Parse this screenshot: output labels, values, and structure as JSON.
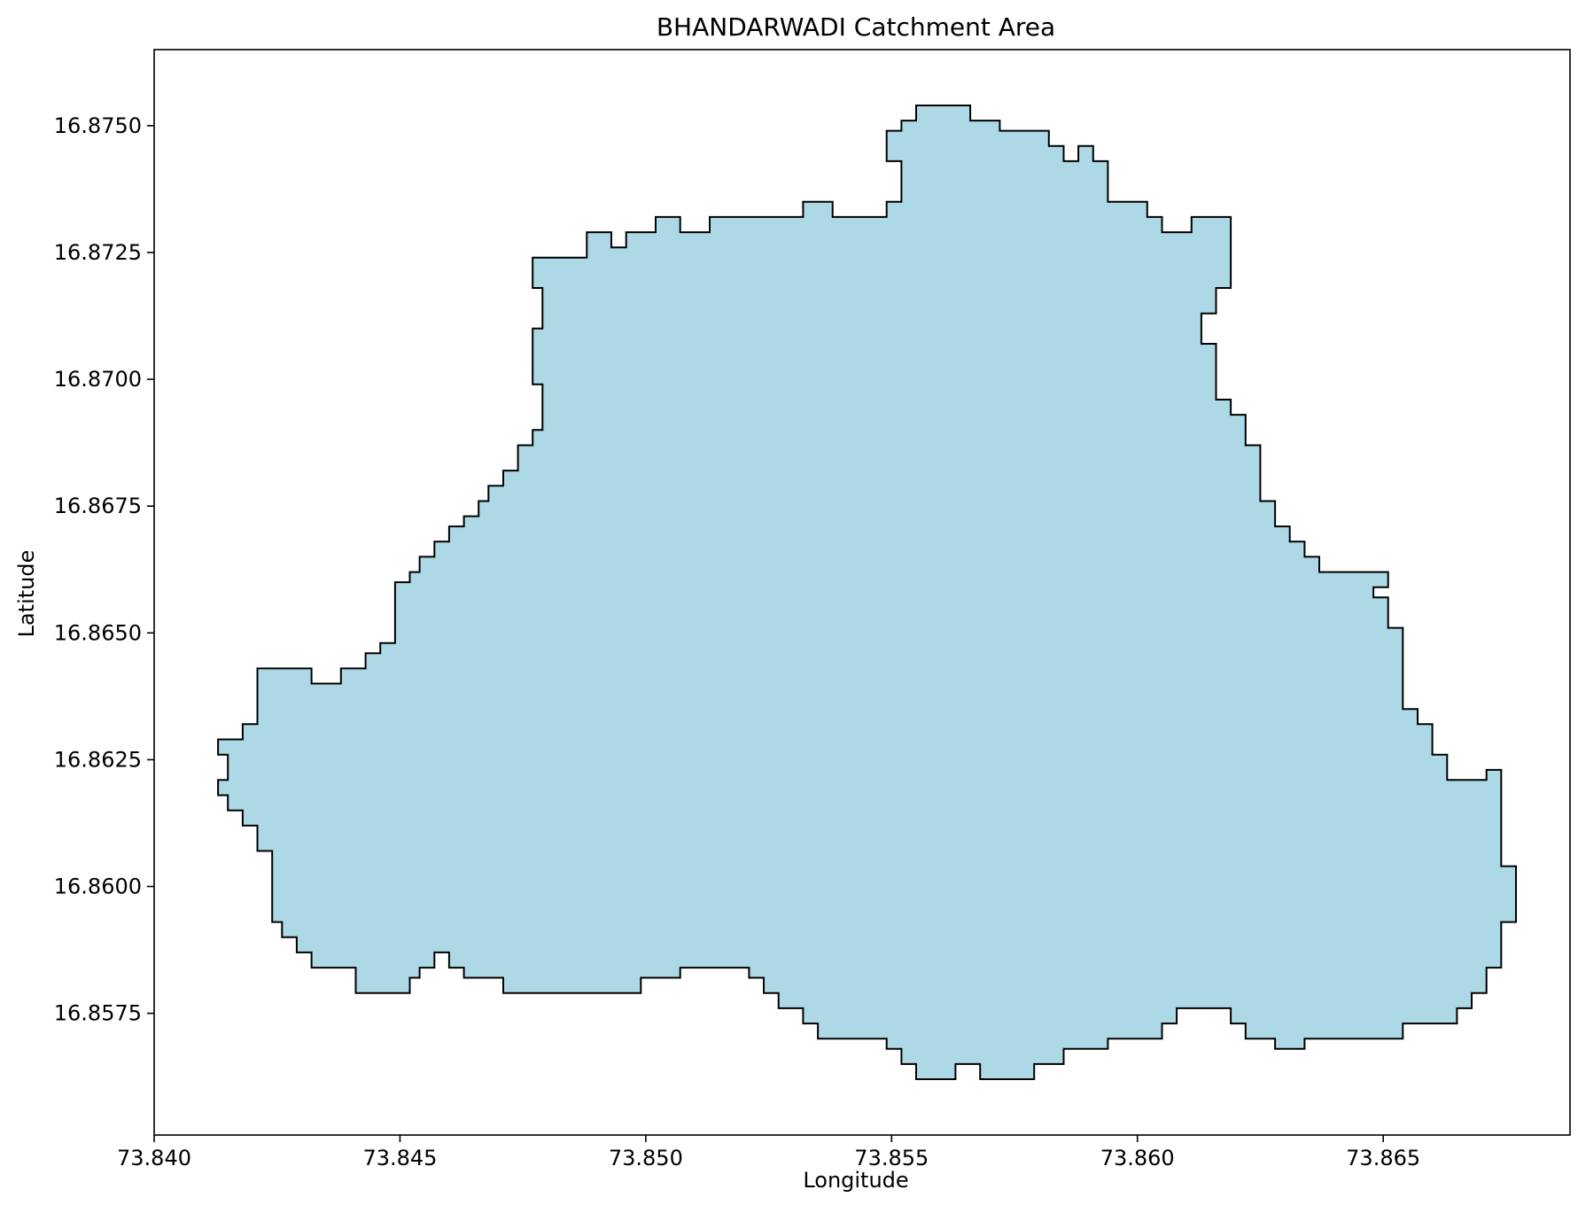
{
  "chart_data": {
    "type": "area",
    "title": "BHANDARWADI Catchment Area",
    "xlabel": "Longitude",
    "ylabel": "Latitude",
    "xlim": [
      73.84,
      73.8688
    ],
    "ylim": [
      16.8551,
      16.8765
    ],
    "xticks": [
      "73.840",
      "73.845",
      "73.850",
      "73.855",
      "73.860",
      "73.865"
    ],
    "yticks": [
      "16.8575",
      "16.8600",
      "16.8625",
      "16.8650",
      "16.8675",
      "16.8700",
      "16.8725",
      "16.8750"
    ],
    "grid": false,
    "colors": {
      "fill": "#add8e6",
      "edge": "#000000"
    },
    "polygon": [
      [
        73.8555,
        16.8754
      ],
      [
        73.8566,
        16.8754
      ],
      [
        73.8566,
        16.8751
      ],
      [
        73.8572,
        16.8751
      ],
      [
        73.8572,
        16.8749
      ],
      [
        73.8582,
        16.8749
      ],
      [
        73.8582,
        16.8746
      ],
      [
        73.8585,
        16.8746
      ],
      [
        73.8585,
        16.8743
      ],
      [
        73.8588,
        16.8743
      ],
      [
        73.8588,
        16.8746
      ],
      [
        73.8591,
        16.8746
      ],
      [
        73.8591,
        16.8743
      ],
      [
        73.8594,
        16.8743
      ],
      [
        73.8594,
        16.8735
      ],
      [
        73.8602,
        16.8735
      ],
      [
        73.8602,
        16.8732
      ],
      [
        73.8605,
        16.8732
      ],
      [
        73.8605,
        16.8729
      ],
      [
        73.8611,
        16.8729
      ],
      [
        73.8611,
        16.8732
      ],
      [
        73.8619,
        16.8732
      ],
      [
        73.8619,
        16.8718
      ],
      [
        73.8616,
        16.8718
      ],
      [
        73.8616,
        16.8713
      ],
      [
        73.8613,
        16.8713
      ],
      [
        73.8613,
        16.8707
      ],
      [
        73.8616,
        16.8707
      ],
      [
        73.8616,
        16.8696
      ],
      [
        73.8619,
        16.8696
      ],
      [
        73.8619,
        16.8693
      ],
      [
        73.8622,
        16.8693
      ],
      [
        73.8622,
        16.8687
      ],
      [
        73.8625,
        16.8687
      ],
      [
        73.8625,
        16.8676
      ],
      [
        73.8628,
        16.8676
      ],
      [
        73.8628,
        16.8671
      ],
      [
        73.8631,
        16.8671
      ],
      [
        73.8631,
        16.8668
      ],
      [
        73.8634,
        16.8668
      ],
      [
        73.8634,
        16.8665
      ],
      [
        73.8637,
        16.8665
      ],
      [
        73.8637,
        16.8662
      ],
      [
        73.8651,
        16.8662
      ],
      [
        73.8651,
        16.8659
      ],
      [
        73.8648,
        16.8659
      ],
      [
        73.8648,
        16.8657
      ],
      [
        73.8651,
        16.8657
      ],
      [
        73.8651,
        16.8651
      ],
      [
        73.8654,
        16.8651
      ],
      [
        73.8654,
        16.8635
      ],
      [
        73.8657,
        16.8635
      ],
      [
        73.8657,
        16.8632
      ],
      [
        73.866,
        16.8632
      ],
      [
        73.866,
        16.8626
      ],
      [
        73.8663,
        16.8626
      ],
      [
        73.8663,
        16.8621
      ],
      [
        73.8671,
        16.8621
      ],
      [
        73.8671,
        16.8623
      ],
      [
        73.8674,
        16.8623
      ],
      [
        73.8674,
        16.8604
      ],
      [
        73.8677,
        16.8604
      ],
      [
        73.8677,
        16.8593
      ],
      [
        73.8674,
        16.8593
      ],
      [
        73.8674,
        16.8584
      ],
      [
        73.8671,
        16.8584
      ],
      [
        73.8671,
        16.8579
      ],
      [
        73.8668,
        16.8579
      ],
      [
        73.8668,
        16.8576
      ],
      [
        73.8665,
        16.8576
      ],
      [
        73.8665,
        16.8573
      ],
      [
        73.8654,
        16.8573
      ],
      [
        73.8654,
        16.857
      ],
      [
        73.8634,
        16.857
      ],
      [
        73.8634,
        16.8568
      ],
      [
        73.8628,
        16.8568
      ],
      [
        73.8628,
        16.857
      ],
      [
        73.8622,
        16.857
      ],
      [
        73.8622,
        16.8573
      ],
      [
        73.8619,
        16.8573
      ],
      [
        73.8619,
        16.8576
      ],
      [
        73.8608,
        16.8576
      ],
      [
        73.8608,
        16.8573
      ],
      [
        73.8605,
        16.8573
      ],
      [
        73.8605,
        16.857
      ],
      [
        73.8594,
        16.857
      ],
      [
        73.8594,
        16.8568
      ],
      [
        73.8585,
        16.8568
      ],
      [
        73.8585,
        16.8565
      ],
      [
        73.8579,
        16.8565
      ],
      [
        73.8579,
        16.8562
      ],
      [
        73.8568,
        16.8562
      ],
      [
        73.8568,
        16.8565
      ],
      [
        73.8563,
        16.8565
      ],
      [
        73.8563,
        16.8562
      ],
      [
        73.8555,
        16.8562
      ],
      [
        73.8555,
        16.8565
      ],
      [
        73.8552,
        16.8565
      ],
      [
        73.8552,
        16.8568
      ],
      [
        73.8549,
        16.8568
      ],
      [
        73.8549,
        16.857
      ],
      [
        73.8535,
        16.857
      ],
      [
        73.8535,
        16.8573
      ],
      [
        73.8532,
        16.8573
      ],
      [
        73.8532,
        16.8576
      ],
      [
        73.8527,
        16.8576
      ],
      [
        73.8527,
        16.8579
      ],
      [
        73.8524,
        16.8579
      ],
      [
        73.8524,
        16.8582
      ],
      [
        73.8521,
        16.8582
      ],
      [
        73.8521,
        16.8584
      ],
      [
        73.8507,
        16.8584
      ],
      [
        73.8507,
        16.8582
      ],
      [
        73.8499,
        16.8582
      ],
      [
        73.8499,
        16.8579
      ],
      [
        73.8471,
        16.8579
      ],
      [
        73.8471,
        16.8582
      ],
      [
        73.8463,
        16.8582
      ],
      [
        73.8463,
        16.8584
      ],
      [
        73.846,
        16.8584
      ],
      [
        73.846,
        16.8587
      ],
      [
        73.8457,
        16.8587
      ],
      [
        73.8457,
        16.8584
      ],
      [
        73.8454,
        16.8584
      ],
      [
        73.8454,
        16.8582
      ],
      [
        73.8452,
        16.8582
      ],
      [
        73.8452,
        16.8579
      ],
      [
        73.8441,
        16.8579
      ],
      [
        73.8441,
        16.8584
      ],
      [
        73.8432,
        16.8584
      ],
      [
        73.8432,
        16.8587
      ],
      [
        73.8429,
        16.8587
      ],
      [
        73.8429,
        16.859
      ],
      [
        73.8426,
        16.859
      ],
      [
        73.8426,
        16.8593
      ],
      [
        73.8424,
        16.8593
      ],
      [
        73.8424,
        16.8607
      ],
      [
        73.8421,
        16.8607
      ],
      [
        73.8421,
        16.8612
      ],
      [
        73.8418,
        16.8612
      ],
      [
        73.8418,
        16.8615
      ],
      [
        73.8415,
        16.8615
      ],
      [
        73.8415,
        16.8618
      ],
      [
        73.8413,
        16.8618
      ],
      [
        73.8413,
        16.8621
      ],
      [
        73.8415,
        16.8621
      ],
      [
        73.8415,
        16.8626
      ],
      [
        73.8413,
        16.8626
      ],
      [
        73.8413,
        16.8629
      ],
      [
        73.8418,
        16.8629
      ],
      [
        73.8418,
        16.8632
      ],
      [
        73.8421,
        16.8632
      ],
      [
        73.8421,
        16.8643
      ],
      [
        73.8432,
        16.8643
      ],
      [
        73.8432,
        16.864
      ],
      [
        73.8438,
        16.864
      ],
      [
        73.8438,
        16.8643
      ],
      [
        73.8443,
        16.8643
      ],
      [
        73.8443,
        16.8646
      ],
      [
        73.8446,
        16.8646
      ],
      [
        73.8446,
        16.8648
      ],
      [
        73.8449,
        16.8648
      ],
      [
        73.8449,
        16.866
      ],
      [
        73.8452,
        16.866
      ],
      [
        73.8452,
        16.8662
      ],
      [
        73.8454,
        16.8662
      ],
      [
        73.8454,
        16.8665
      ],
      [
        73.8457,
        16.8665
      ],
      [
        73.8457,
        16.8668
      ],
      [
        73.846,
        16.8668
      ],
      [
        73.846,
        16.8671
      ],
      [
        73.8463,
        16.8671
      ],
      [
        73.8463,
        16.8673
      ],
      [
        73.8466,
        16.8673
      ],
      [
        73.8466,
        16.8676
      ],
      [
        73.8468,
        16.8676
      ],
      [
        73.8468,
        16.8679
      ],
      [
        73.8471,
        16.8679
      ],
      [
        73.8471,
        16.8682
      ],
      [
        73.8474,
        16.8682
      ],
      [
        73.8474,
        16.8687
      ],
      [
        73.8477,
        16.8687
      ],
      [
        73.8477,
        16.869
      ],
      [
        73.8479,
        16.869
      ],
      [
        73.8479,
        16.8699
      ],
      [
        73.8477,
        16.8699
      ],
      [
        73.8477,
        16.871
      ],
      [
        73.8479,
        16.871
      ],
      [
        73.8479,
        16.8718
      ],
      [
        73.8477,
        16.8718
      ],
      [
        73.8477,
        16.8724
      ],
      [
        73.8488,
        16.8724
      ],
      [
        73.8488,
        16.8729
      ],
      [
        73.8493,
        16.8729
      ],
      [
        73.8493,
        16.8726
      ],
      [
        73.8496,
        16.8726
      ],
      [
        73.8496,
        16.8729
      ],
      [
        73.8502,
        16.8729
      ],
      [
        73.8502,
        16.8732
      ],
      [
        73.8507,
        16.8732
      ],
      [
        73.8507,
        16.8729
      ],
      [
        73.8513,
        16.8729
      ],
      [
        73.8513,
        16.8732
      ],
      [
        73.8532,
        16.8732
      ],
      [
        73.8532,
        16.8735
      ],
      [
        73.8538,
        16.8735
      ],
      [
        73.8538,
        16.8732
      ],
      [
        73.8549,
        16.8732
      ],
      [
        73.8549,
        16.8735
      ],
      [
        73.8552,
        16.8735
      ],
      [
        73.8552,
        16.8743
      ],
      [
        73.8549,
        16.8743
      ],
      [
        73.8549,
        16.8749
      ],
      [
        73.8552,
        16.8749
      ],
      [
        73.8552,
        16.8751
      ],
      [
        73.8555,
        16.8751
      ],
      [
        73.8555,
        16.8754
      ]
    ]
  }
}
